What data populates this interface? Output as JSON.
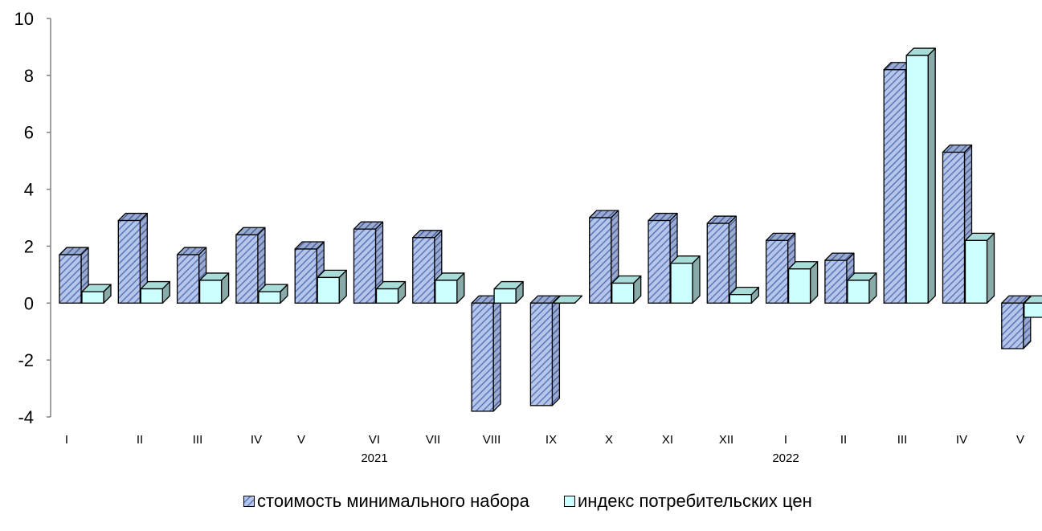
{
  "chart_data": {
    "type": "bar",
    "title": "",
    "xlabel": "",
    "ylabel": "",
    "ylim": [
      -4,
      10
    ],
    "yticks": [
      10,
      8,
      6,
      4,
      2,
      0,
      -2,
      -4
    ],
    "categories": [
      "I",
      "II",
      "III",
      "IV",
      "V",
      "VI",
      "VII",
      "VIII",
      "IX",
      "X",
      "XI",
      "XII",
      "I",
      "II",
      "III",
      "IV",
      "V"
    ],
    "year_labels": [
      {
        "label": "2021",
        "category_index": 5
      },
      {
        "label": "2022",
        "category_index": 12
      }
    ],
    "series": [
      {
        "name": "стоимость минимального набора",
        "values": [
          1.7,
          2.9,
          1.7,
          2.4,
          1.9,
          2.6,
          2.3,
          -3.8,
          -3.6,
          3.0,
          2.9,
          2.8,
          2.2,
          1.5,
          8.2,
          5.3,
          -1.6
        ]
      },
      {
        "name": "индекс потребительских цен",
        "values": [
          0.4,
          0.5,
          0.8,
          0.4,
          0.9,
          0.5,
          0.8,
          0.5,
          0.0,
          0.7,
          1.4,
          0.3,
          1.2,
          0.8,
          8.7,
          2.2,
          -0.5
        ]
      }
    ],
    "grid": false,
    "legend_position": "bottom"
  },
  "colors": {
    "series1_face": "#b6c6ea",
    "series1_hatch": "#5b77b8",
    "series1_side": "#8a9cc6",
    "series2_face": "#ccffff",
    "series2_top": "#a8dcd8",
    "series2_side": "#88aaa8",
    "outline": "#000000",
    "axis": "#808080"
  }
}
